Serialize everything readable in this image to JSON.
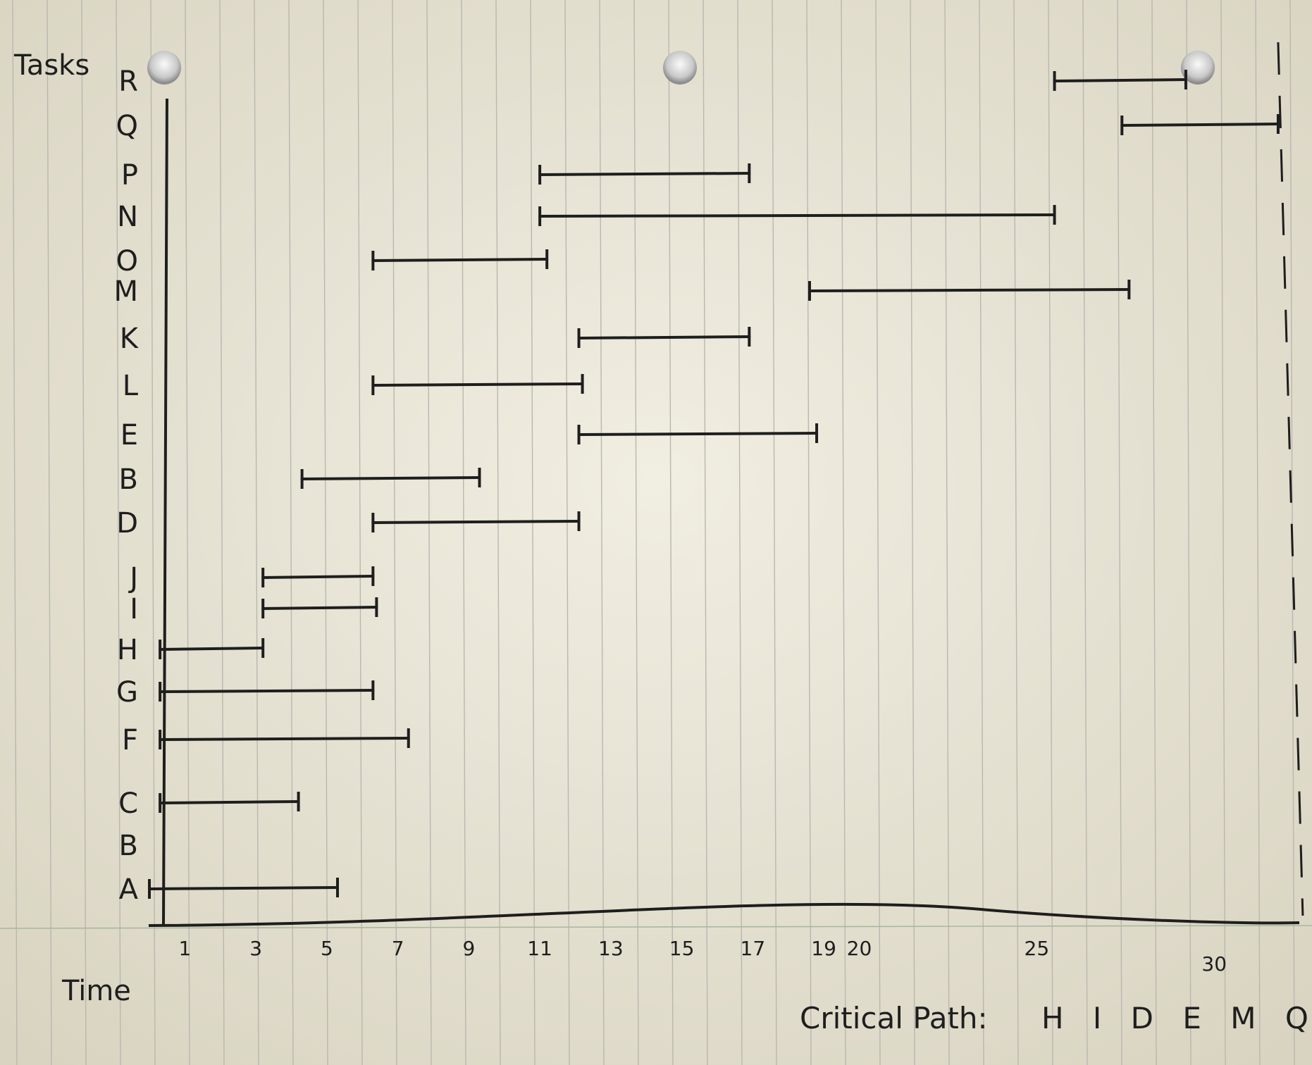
{
  "chart_data": {
    "type": "gantt",
    "ylabel": "Tasks",
    "xlabel": "Time",
    "x_tick_labels": [
      "1",
      "3",
      "5",
      "7",
      "9",
      "11",
      "13",
      "15",
      "17",
      "19",
      "20",
      "25",
      "30"
    ],
    "x_ticks": [
      1,
      3,
      5,
      7,
      9,
      11,
      13,
      15,
      17,
      19,
      20,
      25,
      30
    ],
    "xlim": [
      0,
      32
    ],
    "project_end": 31.8,
    "tasks": [
      {
        "label": "R",
        "start": 25.5,
        "end": 29.2
      },
      {
        "label": "Q",
        "start": 27.4,
        "end": 31.8
      },
      {
        "label": "P",
        "start": 11.0,
        "end": 16.9
      },
      {
        "label": "N",
        "start": 11.0,
        "end": 25.5
      },
      {
        "label": "O",
        "start": 6.3,
        "end": 11.2
      },
      {
        "label": "M",
        "start": 18.6,
        "end": 27.6
      },
      {
        "label": "K",
        "start": 12.1,
        "end": 16.9
      },
      {
        "label": "L",
        "start": 6.3,
        "end": 12.2
      },
      {
        "label": "E",
        "start": 12.1,
        "end": 18.8
      },
      {
        "label": "B",
        "start": 4.3,
        "end": 9.3
      },
      {
        "label": "D",
        "start": 6.3,
        "end": 12.1
      },
      {
        "label": "J",
        "start": 3.2,
        "end": 6.3
      },
      {
        "label": "I",
        "start": 3.2,
        "end": 6.4
      },
      {
        "label": "H",
        "start": 0.3,
        "end": 3.2
      },
      {
        "label": "G",
        "start": 0.3,
        "end": 6.3
      },
      {
        "label": "F",
        "start": 0.3,
        "end": 7.3
      },
      {
        "label": "C",
        "start": 0.3,
        "end": 4.2
      },
      {
        "label": "B",
        "start": null,
        "end": null
      },
      {
        "label": "A",
        "start": 0.0,
        "end": 5.3
      }
    ],
    "critical_path_label": "Critical Path:",
    "critical_path": [
      "H",
      "I",
      "D",
      "E",
      "M",
      "Q"
    ]
  }
}
